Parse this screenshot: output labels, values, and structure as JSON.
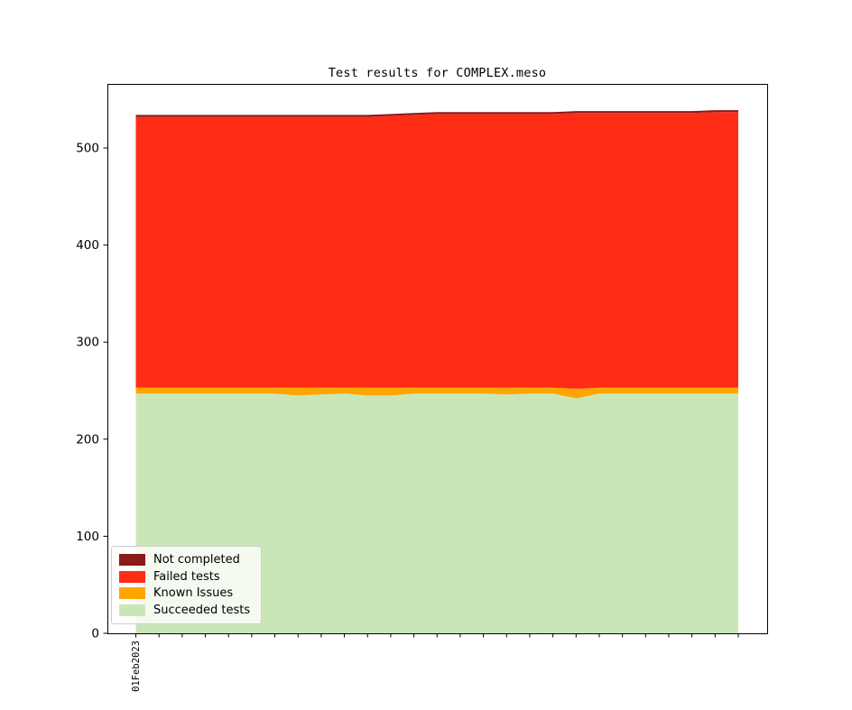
{
  "chart_data": {
    "type": "area",
    "stacked": true,
    "title": "Test results for COMPLEX.meso",
    "xlabel": "",
    "ylabel": "",
    "ylim": [
      0,
      566
    ],
    "yticks": [
      0,
      100,
      200,
      300,
      400,
      500
    ],
    "grid": false,
    "x_points": 27,
    "x_first_tick_label": "01Feb2023",
    "x_tick_labels_visible": [
      "01Feb2023"
    ],
    "series": [
      {
        "name": "Succeeded tests",
        "color": "#C9E7B6",
        "values": [
          247,
          247,
          247,
          247,
          247,
          247,
          247,
          245,
          246,
          247,
          245,
          245,
          247,
          247,
          247,
          247,
          246,
          247,
          247,
          242,
          247,
          247,
          247,
          247,
          247,
          247,
          247
        ]
      },
      {
        "name": "Known Issues",
        "color": "#FFA500",
        "values": [
          6,
          6,
          6,
          6,
          6,
          6,
          6,
          8,
          7,
          6,
          8,
          8,
          6,
          6,
          6,
          6,
          7,
          6,
          6,
          10,
          6,
          6,
          6,
          6,
          6,
          6,
          6
        ]
      },
      {
        "name": "Failed tests",
        "color": "#FF2D16",
        "values": [
          279,
          279,
          279,
          279,
          279,
          279,
          279,
          279,
          279,
          279,
          279,
          280,
          281,
          282,
          282,
          282,
          282,
          282,
          282,
          284,
          283,
          283,
          283,
          283,
          283,
          284,
          284
        ]
      },
      {
        "name": "Not completed",
        "color": "#8B1A1A",
        "values": [
          2,
          2,
          2,
          2,
          2,
          2,
          2,
          2,
          2,
          2,
          2,
          2,
          2,
          2,
          2,
          2,
          2,
          2,
          2,
          2,
          2,
          2,
          2,
          2,
          2,
          2,
          2
        ]
      }
    ],
    "legend": {
      "position": "lower-left",
      "entries": [
        "Not completed",
        "Failed tests",
        "Known Issues",
        "Succeeded tests"
      ]
    },
    "axis_color": "#000000"
  }
}
